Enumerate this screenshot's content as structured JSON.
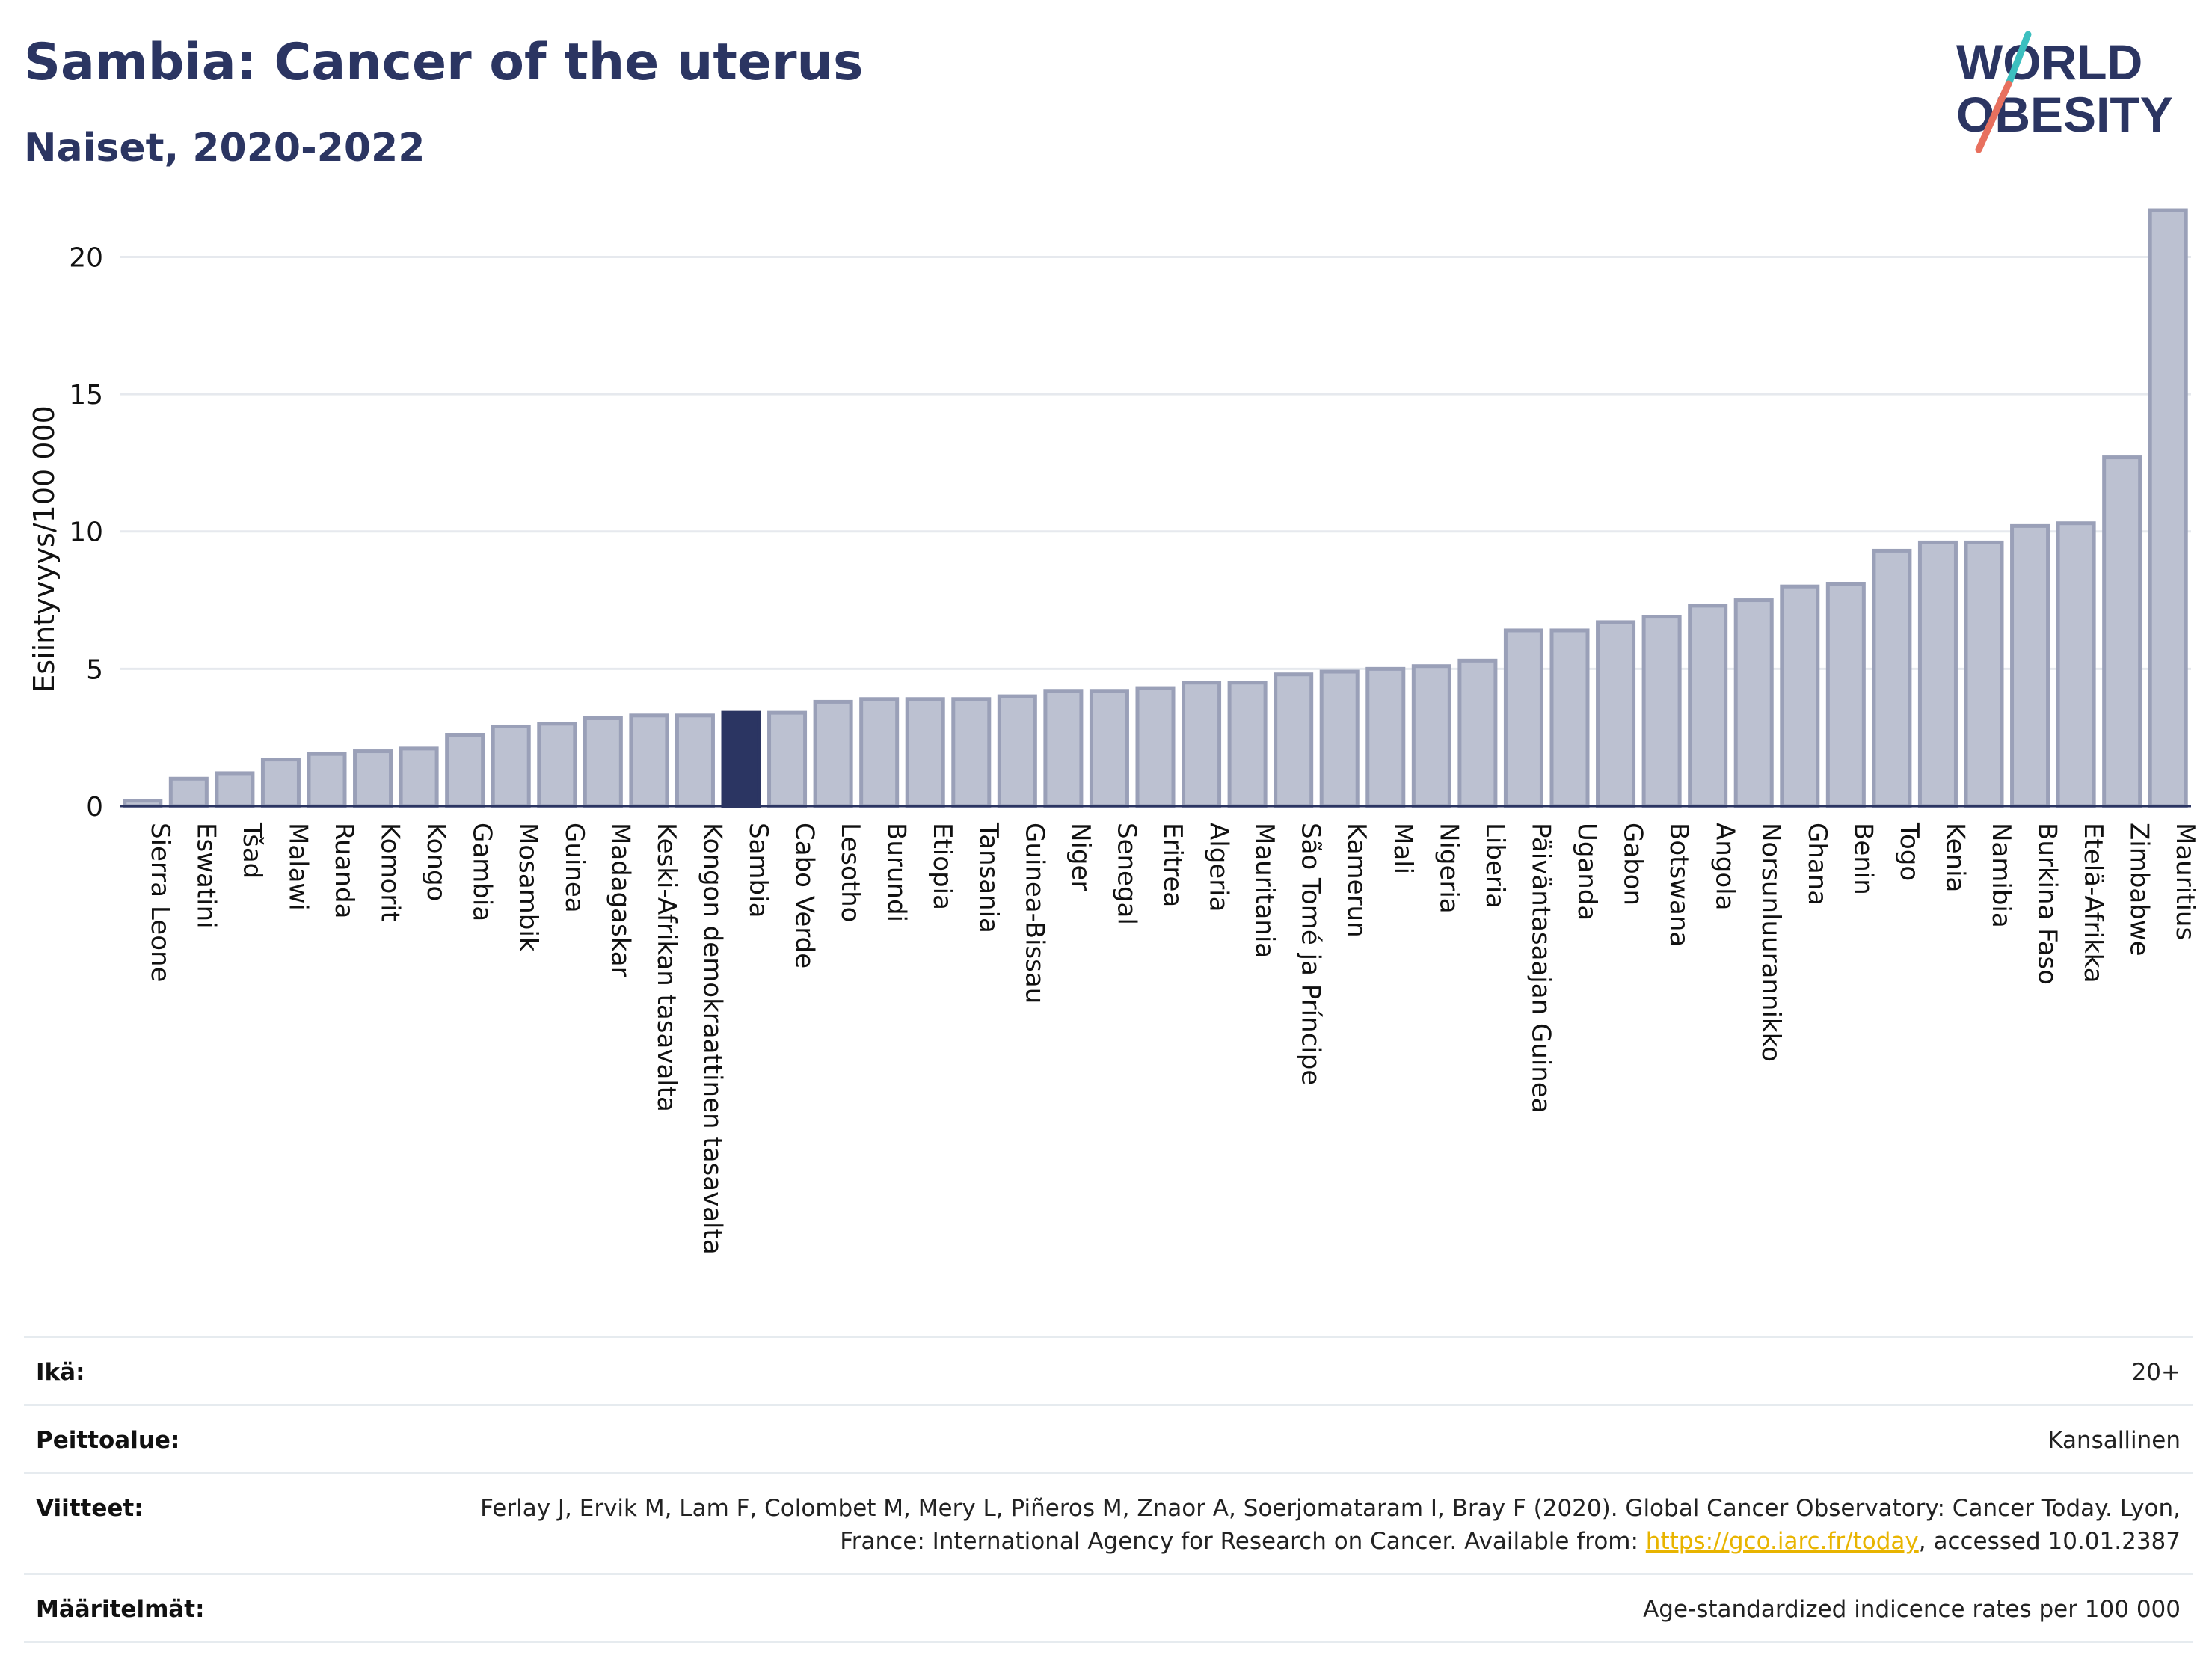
{
  "header": {
    "title": "Sambia: Cancer of the uterus",
    "subtitle": "Naiset, 2020-2022"
  },
  "logo": {
    "line1": "WORLD",
    "line2": "OBESITY"
  },
  "colors": {
    "highlight_bar": "#2b3562",
    "bar_fill": "#bcc1d1",
    "bar_stroke": "#9aa0b8",
    "title": "#2b3562",
    "link": "#e8b400",
    "logo_teal": "#3cbfbf",
    "logo_coral": "#e8705e"
  },
  "chart_data": {
    "type": "bar",
    "title": "Sambia: Cancer of the uterus",
    "subtitle": "Naiset, 2020-2022",
    "xlabel": "",
    "ylabel": "Esiintyvyys/100 000",
    "ylim": [
      0,
      22
    ],
    "yticks": [
      0,
      5,
      10,
      15,
      20
    ],
    "grid": true,
    "highlight": "Sambia",
    "categories": [
      "Sierra Leone",
      "Eswatini",
      "Tšad",
      "Malawi",
      "Ruanda",
      "Komorit",
      "Kongo",
      "Gambia",
      "Mosambik",
      "Guinea",
      "Madagaskar",
      "Keski-Afrikan tasavalta",
      "Kongon demokraattinen tasavalta",
      "Sambia",
      "Cabo Verde",
      "Lesotho",
      "Burundi",
      "Etiopia",
      "Tansania",
      "Guinea-Bissau",
      "Niger",
      "Senegal",
      "Eritrea",
      "Algeria",
      "Mauritania",
      "São Tomé ja Príncipe",
      "Kamerun",
      "Mali",
      "Nigeria",
      "Liberia",
      "Päiväntasaajan Guinea",
      "Uganda",
      "Gabon",
      "Botswana",
      "Angola",
      "Norsunluurannikko",
      "Ghana",
      "Benin",
      "Togo",
      "Kenia",
      "Namibia",
      "Burkina Faso",
      "Etelä-Afrikka",
      "Zimbabwe",
      "Mauritius"
    ],
    "values": [
      0.2,
      1.0,
      1.2,
      1.7,
      1.9,
      2.0,
      2.1,
      2.6,
      2.9,
      3.0,
      3.2,
      3.3,
      3.3,
      3.4,
      3.4,
      3.8,
      3.9,
      3.9,
      3.9,
      4.0,
      4.2,
      4.2,
      4.3,
      4.5,
      4.5,
      4.8,
      4.9,
      5.0,
      5.1,
      5.3,
      6.4,
      6.4,
      6.7,
      6.9,
      7.3,
      7.5,
      8.0,
      8.1,
      9.3,
      9.6,
      9.6,
      10.2,
      10.3,
      12.7,
      21.7
    ]
  },
  "footer": {
    "age_label": "Ikä:",
    "age_value": "20+",
    "coverage_label": "Peittoalue:",
    "coverage_value": "Kansallinen",
    "refs_label": "Viitteet:",
    "refs_text_1": "Ferlay J, Ervik M, Lam F, Colombet M, Mery L, Piñeros M, Znaor A, Soerjomataram I, Bray F (2020). Global Cancer Observatory: Cancer Today. Lyon, France: International Agency for Research on Cancer. Available from: ",
    "refs_link": "https://gco.iarc.fr/today",
    "refs_text_2": ", accessed 10.01.2387",
    "definitions_label": "Määritelmät:",
    "definitions_value": "Age-standardized indicence rates per 100 000"
  }
}
